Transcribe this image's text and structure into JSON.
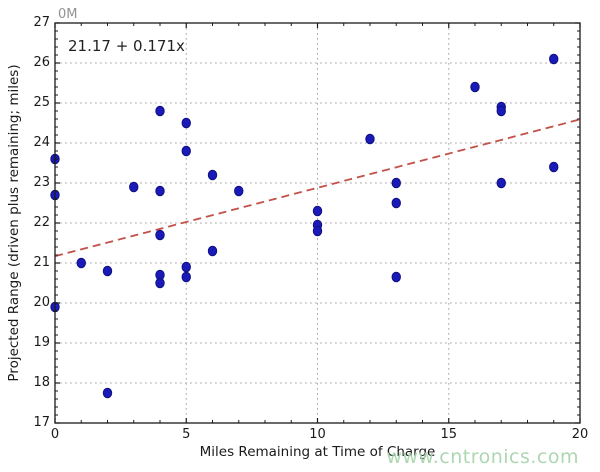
{
  "chart_data": {
    "type": "scatter",
    "xlabel": "Miles Remaining at Time of Charge",
    "ylabel": "Projected Range (driven plus remaining; miles)",
    "xlim": [
      0,
      20
    ],
    "ylim": [
      17,
      27
    ],
    "xticks": [
      0,
      5,
      10,
      15,
      20
    ],
    "yticks": [
      17,
      18,
      19,
      20,
      21,
      22,
      23,
      24,
      25,
      26,
      27
    ],
    "x_minor_step": 1,
    "y_minor_step": 0.2,
    "grid": true,
    "points": [
      [
        0,
        23.6
      ],
      [
        0,
        22.7
      ],
      [
        0,
        19.9
      ],
      [
        1,
        21.0
      ],
      [
        2,
        20.8
      ],
      [
        2,
        17.75
      ],
      [
        3,
        22.9
      ],
      [
        4,
        24.8
      ],
      [
        4,
        22.8
      ],
      [
        4,
        21.7
      ],
      [
        4,
        20.7
      ],
      [
        4,
        20.5
      ],
      [
        5,
        24.5
      ],
      [
        5,
        23.8
      ],
      [
        5,
        20.9
      ],
      [
        5,
        20.65
      ],
      [
        6,
        23.2
      ],
      [
        6,
        21.3
      ],
      [
        7,
        22.8
      ],
      [
        10,
        22.3
      ],
      [
        10,
        21.95
      ],
      [
        10,
        21.8
      ],
      [
        12,
        24.1
      ],
      [
        13,
        23.0
      ],
      [
        13,
        22.5
      ],
      [
        13,
        20.65
      ],
      [
        16,
        25.4
      ],
      [
        17,
        24.9
      ],
      [
        17,
        24.8
      ],
      [
        17,
        23.0
      ],
      [
        19,
        26.1
      ],
      [
        19,
        23.4
      ]
    ],
    "trendline": {
      "label": "21.17 + 0.171x",
      "intercept": 21.17,
      "slope": 0.171,
      "x_start": 0,
      "x_end": 20
    },
    "colors": {
      "marker": "#1a1ab8",
      "marker_edge": "#10107e",
      "trend": "#c4504a",
      "grid": "#a8a8a8",
      "axis": "#1a1a1a",
      "text": "#1a1a1a"
    }
  },
  "watermark": {
    "text": "www.cntronics.com",
    "color": "#a9d4ae"
  },
  "artifact": {
    "top_left": "0M"
  }
}
